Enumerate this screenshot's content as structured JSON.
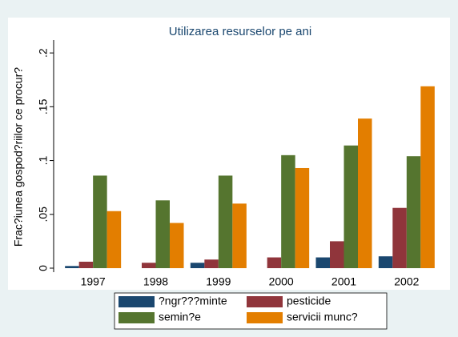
{
  "chart_data": {
    "type": "bar",
    "title": "Utilizarea resurselor pe ani",
    "y_label": "Frac?iunea gospod?riilor ce procur?",
    "categories": [
      "1997",
      "1998",
      "1999",
      "2000",
      "2001",
      "2002"
    ],
    "series": [
      {
        "name": "?ngr???minte",
        "color": "#1a476f",
        "values": [
          0.002,
          0,
          0.005,
          0,
          0.01,
          0.011
        ]
      },
      {
        "name": "pesticide",
        "color": "#90353b",
        "values": [
          0.006,
          0.005,
          0.008,
          0.01,
          0.025,
          0.056
        ]
      },
      {
        "name": "semin?e",
        "color": "#55752f",
        "values": [
          0.086,
          0.063,
          0.086,
          0.105,
          0.114,
          0.104
        ]
      },
      {
        "name": "servicii munc?",
        "color": "#e37e00",
        "values": [
          0.053,
          0.042,
          0.06,
          0.093,
          0.139,
          0.169
        ]
      }
    ],
    "ylim": [
      0,
      0.212
    ],
    "yticks": [
      0,
      {
        "value": 0.05,
        "label": ".05"
      },
      {
        "value": 0.1,
        "label": ".1"
      },
      {
        "value": 0.15,
        "label": ".15"
      },
      {
        "value": 0.2,
        "label": ".2"
      }
    ],
    "legend": "bottom"
  }
}
